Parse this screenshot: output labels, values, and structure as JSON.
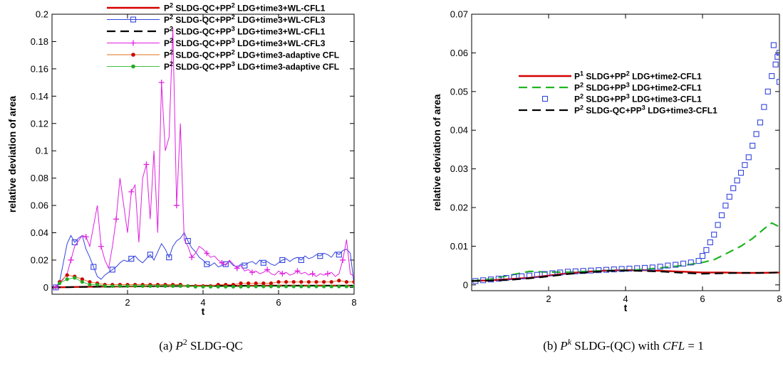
{
  "chart_data": [
    {
      "type": "line",
      "caption": {
        "label": "(a)",
        "math": "P",
        "sup": "2",
        "rest": " SLDG-QC"
      },
      "xlabel": "t",
      "ylabel": "relative deviation of area",
      "xlim": [
        0,
        8
      ],
      "ylim": [
        -0.005,
        0.2
      ],
      "xticks": [
        "2",
        "4",
        "6",
        "8"
      ],
      "yticks": [
        "0",
        "0.02",
        "0.04",
        "0.06",
        "0.08",
        "0.1",
        "0.12",
        "0.14",
        "0.16",
        "0.18",
        "0.2"
      ],
      "legend_position": "top",
      "series": [
        {
          "name_base": "P",
          "parts": [
            [
              "2",
              " SLDG-QC+P"
            ],
            [
              "2",
              " LDG+time3+WL-CFL1"
            ]
          ],
          "color": "#d40000",
          "style": "solid",
          "marker": "none",
          "x": [
            0,
            1,
            2,
            3,
            4,
            5,
            6,
            7,
            8
          ],
          "y": [
            0.0,
            0.0005,
            0.0008,
            0.001,
            0.0012,
            0.0012,
            0.0013,
            0.0013,
            0.0013
          ]
        },
        {
          "name_base": "P",
          "parts": [
            [
              "2",
              " SLDG-QC+P"
            ],
            [
              "2",
              " LDG+time3+WL-CFL3"
            ]
          ],
          "color": "#3344dd",
          "style": "thin",
          "marker": "square",
          "marker_every": 5,
          "x": [
            0.1,
            0.2,
            0.3,
            0.4,
            0.5,
            0.6,
            0.7,
            0.8,
            0.9,
            1.0,
            1.1,
            1.2,
            1.3,
            1.4,
            1.5,
            1.6,
            1.7,
            1.8,
            1.9,
            2.0,
            2.1,
            2.2,
            2.3,
            2.4,
            2.5,
            2.6,
            2.7,
            2.8,
            2.9,
            3.0,
            3.1,
            3.2,
            3.3,
            3.4,
            3.5,
            3.6,
            3.7,
            3.8,
            3.9,
            4.0,
            4.1,
            4.2,
            4.3,
            4.4,
            4.5,
            4.6,
            4.7,
            4.8,
            4.9,
            5.0,
            5.1,
            5.2,
            5.3,
            5.4,
            5.5,
            5.6,
            5.7,
            5.8,
            5.9,
            6.0,
            6.1,
            6.2,
            6.3,
            6.4,
            6.5,
            6.6,
            6.7,
            6.8,
            6.9,
            7.0,
            7.1,
            7.2,
            7.3,
            7.4,
            7.5,
            7.6,
            7.7,
            7.8,
            7.9,
            8.0
          ],
          "y": [
            0.0,
            0.004,
            0.018,
            0.032,
            0.038,
            0.033,
            0.036,
            0.038,
            0.028,
            0.022,
            0.015,
            0.008,
            0.006,
            0.009,
            0.011,
            0.013,
            0.015,
            0.018,
            0.02,
            0.019,
            0.021,
            0.023,
            0.02,
            0.018,
            0.021,
            0.024,
            0.02,
            0.026,
            0.032,
            0.028,
            0.022,
            0.03,
            0.034,
            0.036,
            0.04,
            0.034,
            0.029,
            0.026,
            0.022,
            0.02,
            0.017,
            0.016,
            0.018,
            0.015,
            0.016,
            0.017,
            0.019,
            0.016,
            0.015,
            0.017,
            0.016,
            0.018,
            0.019,
            0.017,
            0.02,
            0.018,
            0.019,
            0.017,
            0.016,
            0.018,
            0.02,
            0.021,
            0.019,
            0.021,
            0.022,
            0.02,
            0.023,
            0.021,
            0.022,
            0.024,
            0.023,
            0.025,
            0.024,
            0.022,
            0.026,
            0.024,
            0.027,
            0.028,
            0.025,
            0.002
          ]
        },
        {
          "name_base": "P",
          "parts": [
            [
              "2",
              " SLDG-QC+P"
            ],
            [
              "3",
              " LDG+time3+WL-CFL1"
            ]
          ],
          "color": "#000000",
          "style": "dash",
          "marker": "none",
          "x": [
            0,
            1,
            2,
            3,
            4,
            5,
            6,
            7,
            8
          ],
          "y": [
            0.0,
            0.0004,
            0.0007,
            0.0009,
            0.001,
            0.0011,
            0.0011,
            0.0012,
            0.0012
          ]
        },
        {
          "name_base": "P",
          "parts": [
            [
              "2",
              " SLDG-QC+P"
            ],
            [
              "3",
              " LDG+time3+WL-CFL3"
            ]
          ],
          "color": "#e020e0",
          "style": "thin",
          "marker": "plus",
          "marker_every": 4,
          "x": [
            0.1,
            0.2,
            0.3,
            0.4,
            0.5,
            0.6,
            0.7,
            0.8,
            0.9,
            1.0,
            1.1,
            1.2,
            1.3,
            1.4,
            1.5,
            1.6,
            1.7,
            1.8,
            1.9,
            2.0,
            2.1,
            2.2,
            2.3,
            2.4,
            2.5,
            2.6,
            2.7,
            2.8,
            2.9,
            3.0,
            3.1,
            3.2,
            3.3,
            3.4,
            3.5,
            3.6,
            3.7,
            3.8,
            3.9,
            4.0,
            4.1,
            4.2,
            4.3,
            4.4,
            4.5,
            4.6,
            4.7,
            4.8,
            4.9,
            5.0,
            5.1,
            5.2,
            5.3,
            5.4,
            5.5,
            5.6,
            5.7,
            5.8,
            5.9,
            6.0,
            6.1,
            6.2,
            6.3,
            6.4,
            6.5,
            6.6,
            6.7,
            6.8,
            6.9,
            7.0,
            7.1,
            7.2,
            7.3,
            7.4,
            7.5,
            7.6,
            7.7,
            7.8,
            7.9,
            8.0
          ],
          "y": [
            0.0,
            0.003,
            0.006,
            0.01,
            0.02,
            0.03,
            0.034,
            0.038,
            0.037,
            0.03,
            0.045,
            0.06,
            0.03,
            0.02,
            0.014,
            0.03,
            0.05,
            0.08,
            0.06,
            0.04,
            0.07,
            0.075,
            0.033,
            0.08,
            0.09,
            0.05,
            0.1,
            0.04,
            0.15,
            0.1,
            0.11,
            0.19,
            0.06,
            0.12,
            0.035,
            0.03,
            0.022,
            0.025,
            0.03,
            0.028,
            0.025,
            0.022,
            0.023,
            0.02,
            0.018,
            0.016,
            0.02,
            0.017,
            0.014,
            0.016,
            0.012,
            0.013,
            0.011,
            0.012,
            0.01,
            0.011,
            0.013,
            0.01,
            0.009,
            0.012,
            0.01,
            0.011,
            0.009,
            0.01,
            0.012,
            0.01,
            0.011,
            0.009,
            0.01,
            0.008,
            0.01,
            0.009,
            0.01,
            0.011,
            0.008,
            0.01,
            0.02,
            0.035,
            0.01,
            0.008
          ]
        },
        {
          "name_base": "P",
          "parts": [
            [
              "2",
              " SLDG-QC+P"
            ],
            [
              "2",
              " LDG+time3-adaptive CFL"
            ]
          ],
          "color": "#e07020",
          "marker_color": "#cc0000",
          "style": "thin",
          "marker": "dot",
          "x": [
            0.2,
            0.4,
            0.6,
            0.8,
            1.0,
            1.2,
            1.4,
            1.6,
            1.8,
            2.0,
            2.2,
            2.4,
            2.6,
            2.8,
            3.0,
            3.2,
            3.4,
            3.6,
            3.8,
            4.0,
            4.2,
            4.4,
            4.6,
            4.8,
            5.0,
            5.2,
            5.4,
            5.6,
            5.8,
            6.0,
            6.2,
            6.4,
            6.6,
            6.8,
            7.0,
            7.2,
            7.4,
            7.6,
            7.8,
            8.0
          ],
          "y": [
            0.004,
            0.009,
            0.008,
            0.006,
            0.004,
            0.003,
            0.002,
            0.002,
            0.002,
            0.002,
            0.002,
            0.002,
            0.002,
            0.002,
            0.002,
            0.002,
            0.002,
            0.001,
            0.001,
            0.001,
            0.001,
            0.002,
            0.002,
            0.002,
            0.003,
            0.003,
            0.003,
            0.003,
            0.003,
            0.004,
            0.004,
            0.004,
            0.004,
            0.004,
            0.004,
            0.004,
            0.004,
            0.005,
            0.004,
            0.004
          ]
        },
        {
          "name_base": "P",
          "parts": [
            [
              "2",
              " SLDG-QC+P"
            ],
            [
              "3",
              " LDG+time3-adaptive CFL"
            ]
          ],
          "color": "#40c040",
          "marker_color": "#22aa22",
          "style": "thin",
          "marker": "dot",
          "x": [
            0.2,
            0.4,
            0.6,
            0.8,
            1.0,
            1.2,
            1.4,
            1.6,
            1.8,
            2.0,
            2.2,
            2.4,
            2.6,
            2.8,
            3.0,
            3.2,
            3.4,
            3.6,
            3.8,
            4.0,
            4.2,
            4.4,
            4.6,
            4.8,
            5.0,
            5.2,
            5.4,
            5.6,
            5.8,
            6.0,
            6.2,
            6.4,
            6.6,
            6.8,
            7.0,
            7.2,
            7.4,
            7.6,
            7.8,
            8.0
          ],
          "y": [
            0.003,
            0.006,
            0.007,
            0.004,
            0.002,
            0.002,
            0.001,
            0.001,
            0.001,
            0.001,
            0.001,
            0.001,
            0.001,
            0.001,
            0.001,
            0.001,
            0.001,
            0.001,
            0.0005,
            0.0005,
            0.0005,
            0.0005,
            0.0005,
            0.0005,
            0.0005,
            0.0007,
            0.0007,
            0.0007,
            0.0007,
            0.0007,
            0.0007,
            0.0007,
            0.0007,
            0.0007,
            0.0007,
            0.0007,
            0.0007,
            0.0007,
            0.0007,
            0.0007
          ]
        }
      ]
    },
    {
      "type": "line",
      "caption": {
        "label": "(b)",
        "math": "P",
        "sup": "k",
        "rest": " SLDG-(QC) with ",
        "math2": "CFL",
        "rest2": " = 1"
      },
      "xlabel": "t",
      "ylabel": "relative deviation of area",
      "xlim": [
        0,
        8
      ],
      "ylim": [
        -0.0015,
        0.07
      ],
      "xticks": [
        "2",
        "4",
        "6",
        "8"
      ],
      "yticks": [
        "0",
        "0.01",
        "0.02",
        "0.03",
        "0.04",
        "0.05",
        "0.06",
        "0.07"
      ],
      "legend_position": "upper-center",
      "series": [
        {
          "name_base": "P",
          "parts": [
            [
              "1",
              " SLDG+P"
            ],
            [
              "2",
              " LDG+time2-CFL1"
            ]
          ],
          "color": "#d40000",
          "style": "solid",
          "marker": "none",
          "x": [
            0,
            0.5,
            1,
            1.5,
            2,
            2.5,
            3,
            3.5,
            4,
            4.5,
            5,
            5.5,
            6,
            6.5,
            7,
            7.5,
            8
          ],
          "y": [
            0.001,
            0.0012,
            0.0015,
            0.0018,
            0.0024,
            0.003,
            0.0034,
            0.0037,
            0.0038,
            0.0038,
            0.0036,
            0.0034,
            0.0032,
            0.0032,
            0.0031,
            0.0031,
            0.0032
          ]
        },
        {
          "name_base": "P",
          "parts": [
            [
              "2",
              " SLDG+P"
            ],
            [
              "3",
              " LDG+time2-CFL1"
            ]
          ],
          "color": "#22b522",
          "style": "dash",
          "marker": "none",
          "x": [
            0,
            0.5,
            1,
            1.5,
            2,
            2.5,
            3,
            3.5,
            4,
            4.5,
            5,
            5.5,
            6,
            6.3,
            6.6,
            7,
            7.3,
            7.6,
            7.8,
            8
          ],
          "y": [
            0.001,
            0.0015,
            0.0025,
            0.0035,
            0.0033,
            0.0033,
            0.0035,
            0.0037,
            0.0038,
            0.004,
            0.0045,
            0.005,
            0.0058,
            0.0065,
            0.008,
            0.01,
            0.012,
            0.0145,
            0.016,
            0.015
          ]
        },
        {
          "name_base": "P",
          "parts": [
            [
              "2",
              " SLDG+P"
            ],
            [
              "3",
              " LDG+time3-CFL1"
            ]
          ],
          "color": "#3344dd",
          "style": "none",
          "marker": "square",
          "x": [
            0.1,
            0.3,
            0.5,
            0.7,
            0.9,
            1.1,
            1.3,
            1.5,
            1.7,
            1.9,
            2.1,
            2.3,
            2.5,
            2.7,
            2.9,
            3.1,
            3.3,
            3.5,
            3.7,
            3.9,
            4.1,
            4.3,
            4.5,
            4.7,
            4.9,
            5.1,
            5.3,
            5.5,
            5.7,
            5.9,
            6.0,
            6.1,
            6.2,
            6.3,
            6.4,
            6.5,
            6.6,
            6.7,
            6.8,
            6.9,
            7.0,
            7.1,
            7.2,
            7.3,
            7.4,
            7.5,
            7.6,
            7.7,
            7.8,
            7.9,
            8.0,
            7.85,
            7.95,
            8.0
          ],
          "y": [
            0.001,
            0.0012,
            0.0014,
            0.0016,
            0.0018,
            0.002,
            0.0022,
            0.0024,
            0.0026,
            0.0028,
            0.003,
            0.0032,
            0.0034,
            0.0035,
            0.0036,
            0.0037,
            0.0038,
            0.0039,
            0.004,
            0.0041,
            0.0042,
            0.0043,
            0.0044,
            0.0045,
            0.0047,
            0.005,
            0.0052,
            0.0055,
            0.0058,
            0.0062,
            0.0075,
            0.009,
            0.011,
            0.013,
            0.0155,
            0.018,
            0.0205,
            0.0228,
            0.025,
            0.027,
            0.029,
            0.031,
            0.033,
            0.036,
            0.039,
            0.042,
            0.046,
            0.05,
            0.054,
            0.057,
            0.06,
            0.062,
            0.059,
            0.0525
          ]
        },
        {
          "name_base": "P",
          "parts": [
            [
              "2",
              " SLDG-QC+P"
            ],
            [
              "3",
              " LDG+time3-CFL1"
            ]
          ],
          "color": "#000000",
          "style": "dash",
          "marker": "none",
          "x": [
            0,
            0.5,
            1,
            1.5,
            2,
            2.5,
            3,
            3.5,
            4,
            4.5,
            5,
            5.5,
            6,
            6.5,
            7,
            7.5,
            8
          ],
          "y": [
            0.001,
            0.0011,
            0.0013,
            0.0017,
            0.0022,
            0.0028,
            0.0032,
            0.0036,
            0.0037,
            0.0036,
            0.0034,
            0.0031,
            0.0029,
            0.003,
            0.0031,
            0.0031,
            0.0032
          ]
        }
      ]
    }
  ]
}
